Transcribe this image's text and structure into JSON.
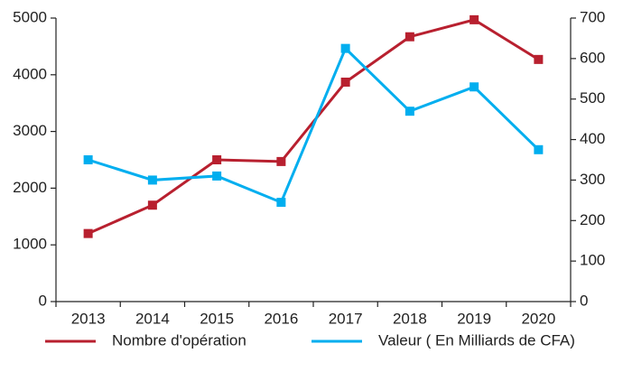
{
  "chart_data": {
    "type": "line",
    "categories": [
      "2013",
      "2014",
      "2015",
      "2016",
      "2017",
      "2018",
      "2019",
      "2020"
    ],
    "series": [
      {
        "name": "Nombre d'opération",
        "color": "#b8202f",
        "values": [
          1200,
          1700,
          2500,
          2470,
          3870,
          4670,
          4970,
          4270
        ]
      },
      {
        "name": "Valeur ( En Milliards de CFA)",
        "color": "#00aeef",
        "axis": "y2",
        "values": [
          350,
          300,
          310,
          245,
          625,
          470,
          530,
          375
        ]
      }
    ],
    "ylim": [
      0,
      5000
    ],
    "yticks": [
      0,
      1000,
      2000,
      3000,
      4000,
      5000
    ],
    "y2lim": [
      0,
      700
    ],
    "y2ticks": [
      0,
      100,
      200,
      300,
      400,
      500,
      600,
      700
    ],
    "grid": false,
    "legend": "bottom"
  }
}
